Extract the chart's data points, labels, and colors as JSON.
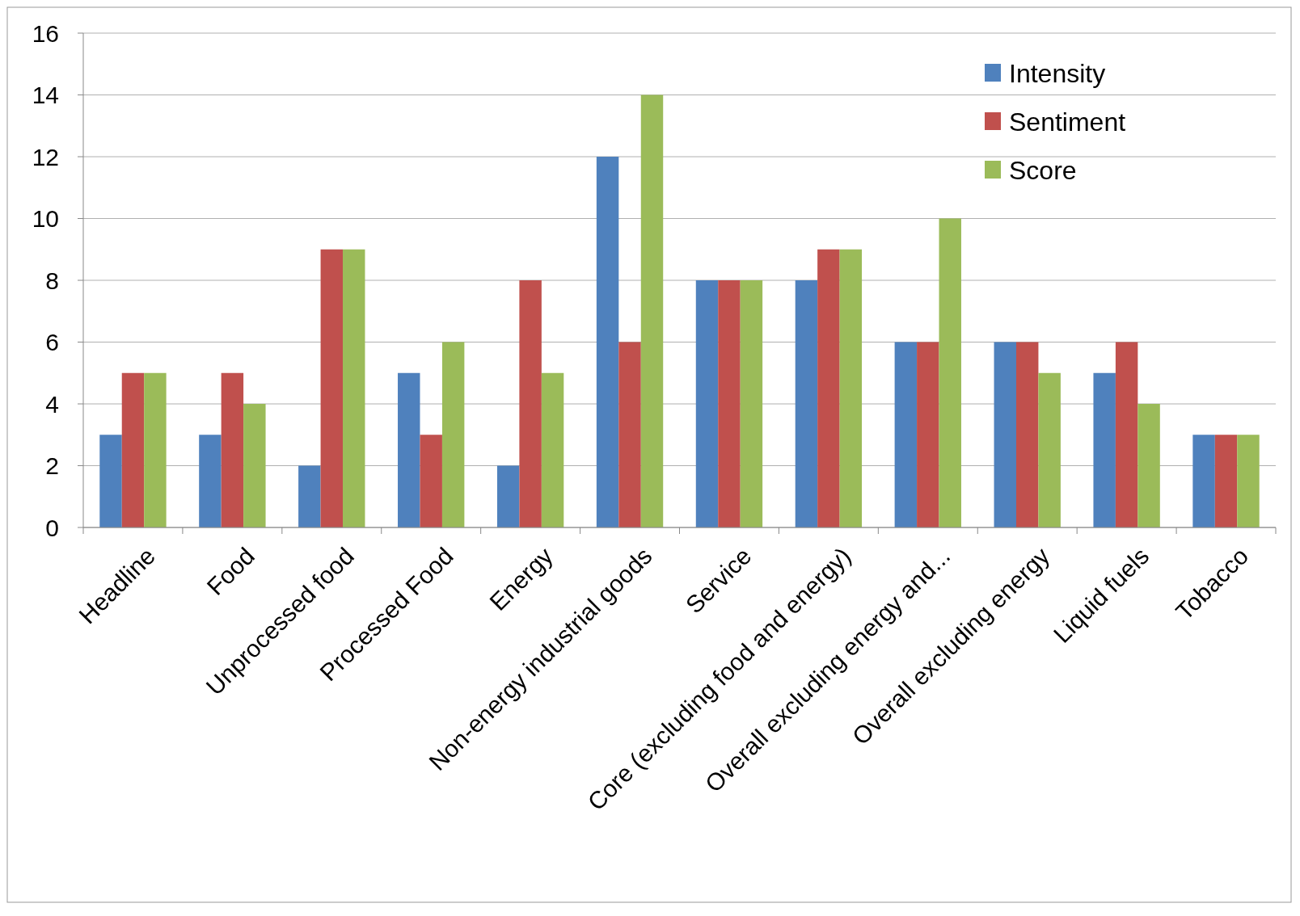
{
  "chart_data": {
    "type": "bar",
    "categories": [
      "Headline",
      "Food",
      "Unprocessed food",
      "Processed Food",
      "Energy",
      "Non-energy industrial goods",
      "Service",
      "Core (excluding food and energy)",
      "Overall excluding energy and...",
      "Overall excluding energy",
      "Liquid fuels",
      "Tobacco"
    ],
    "series": [
      {
        "name": "Intensity",
        "color": "#4f81bd",
        "values": [
          3,
          3,
          2,
          5,
          2,
          12,
          8,
          8,
          6,
          6,
          5,
          3
        ]
      },
      {
        "name": "Sentiment",
        "color": "#c0504d",
        "values": [
          5,
          5,
          9,
          3,
          8,
          6,
          8,
          9,
          6,
          6,
          6,
          3
        ]
      },
      {
        "name": "Score",
        "color": "#9bbb59",
        "values": [
          5,
          4,
          9,
          6,
          5,
          14,
          8,
          9,
          10,
          5,
          4,
          3
        ]
      }
    ],
    "ylim": [
      0,
      16
    ],
    "yticks": [
      0,
      2,
      4,
      6,
      8,
      10,
      12,
      14,
      16
    ],
    "grid": "y",
    "legend": "top right"
  }
}
